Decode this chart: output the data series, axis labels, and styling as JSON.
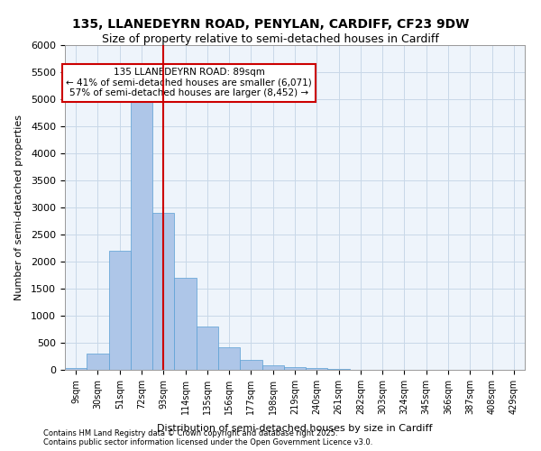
{
  "title_line1": "135, LLANEDEYRN ROAD, PENYLAN, CARDIFF, CF23 9DW",
  "title_line2": "Size of property relative to semi-detached houses in Cardiff",
  "xlabel": "Distribution of semi-detached houses by size in Cardiff",
  "ylabel": "Number of semi-detached properties",
  "footer_line1": "Contains HM Land Registry data © Crown copyright and database right 2025.",
  "footer_line2": "Contains public sector information licensed under the Open Government Licence v3.0.",
  "categories": [
    "9sqm",
    "30sqm",
    "51sqm",
    "72sqm",
    "93sqm",
    "114sqm",
    "135sqm",
    "156sqm",
    "177sqm",
    "198sqm",
    "219sqm",
    "240sqm",
    "261sqm",
    "282sqm",
    "303sqm",
    "324sqm",
    "345sqm",
    "366sqm",
    "387sqm",
    "408sqm",
    "429sqm"
  ],
  "values": [
    30,
    300,
    2200,
    4950,
    2900,
    1700,
    800,
    420,
    180,
    90,
    50,
    30,
    15,
    5,
    2,
    1,
    0,
    0,
    0,
    0,
    0
  ],
  "bar_color": "#aec6e8",
  "bar_edge_color": "#5a9fd4",
  "bar_alpha": 1.0,
  "grid_color": "#c8d8e8",
  "background_color": "#eef4fb",
  "vline_x": 4,
  "vline_color": "#cc0000",
  "annotation_text": "135 LLANEDEYRN ROAD: 89sqm\n← 41% of semi-detached houses are smaller (6,071)\n57% of semi-detached houses are larger (8,452) →",
  "annotation_box_color": "#cc0000",
  "ylim": [
    0,
    6000
  ],
  "yticks": [
    0,
    500,
    1000,
    1500,
    2000,
    2500,
    3000,
    3500,
    4000,
    4500,
    5000,
    5500,
    6000
  ]
}
